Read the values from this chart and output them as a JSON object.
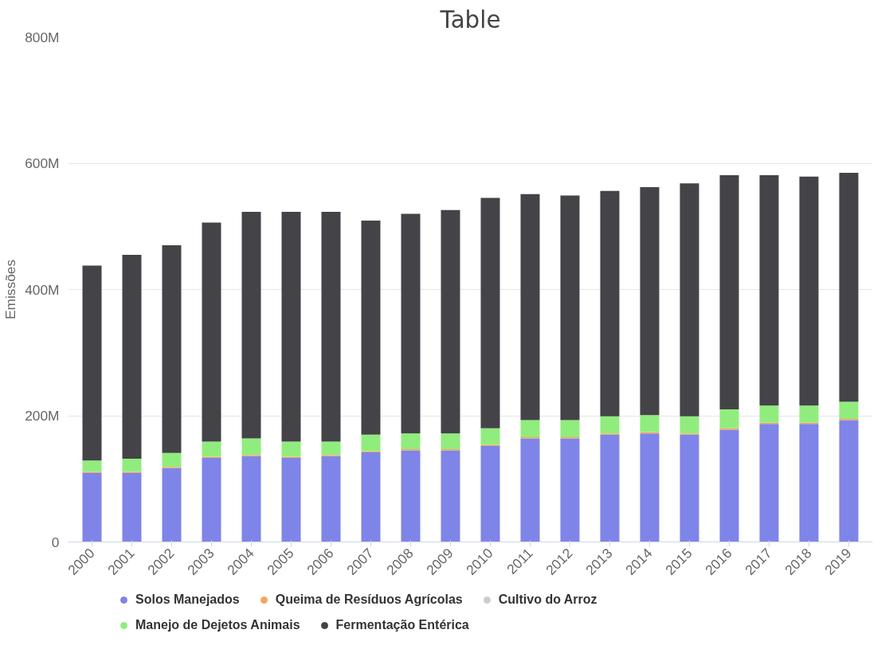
{
  "chart_data": {
    "type": "bar",
    "title": "Table",
    "ylabel": "Emissões",
    "stacked": true,
    "legend": "bottom",
    "grid": "y",
    "categories": [
      "2000",
      "2001",
      "2002",
      "2003",
      "2004",
      "2005",
      "2006",
      "2007",
      "2008",
      "2009",
      "2010",
      "2011",
      "2012",
      "2013",
      "2014",
      "2015",
      "2016",
      "2017",
      "2018",
      "2019"
    ],
    "ylim": [
      0,
      800
    ],
    "yticks": [
      0,
      {
        "value": 200,
        "label": "200M"
      },
      {
        "value": 400,
        "label": "400M"
      },
      {
        "value": 600,
        "label": "600M"
      },
      {
        "value": 800,
        "label": "800M"
      }
    ],
    "series": [
      {
        "name": "Solos Manejados",
        "color": "#7f84e8",
        "values": [
          109,
          109,
          117,
          133,
          136,
          133,
          136,
          142,
          145,
          145,
          152,
          164,
          164,
          170,
          172,
          170,
          178,
          187,
          187,
          193
        ]
      },
      {
        "name": "Queima de Resíduos Agrícolas",
        "color": "#f7a35c",
        "values": [
          2,
          2,
          2,
          2,
          2,
          2,
          2,
          2,
          2,
          2,
          2,
          2,
          2,
          2,
          2,
          2,
          2,
          2,
          2,
          2
        ]
      },
      {
        "name": "Cultivo do Arroz",
        "color": "#cccccc",
        "values": [
          null,
          null,
          null,
          null,
          null,
          null,
          null,
          null,
          null,
          null,
          null,
          null,
          null,
          null,
          null,
          null,
          null,
          null,
          null,
          null
        ]
      },
      {
        "name": "Manejo de Dejetos Animais",
        "color": "#90ed7d",
        "values": [
          18,
          21,
          22,
          24,
          26,
          24,
          21,
          26,
          25,
          25,
          26,
          27,
          27,
          27,
          27,
          27,
          30,
          27,
          27,
          27
        ]
      },
      {
        "name": "Fermentação Entérica",
        "color": "#434348",
        "values": [
          309,
          323,
          329,
          347,
          359,
          364,
          364,
          339,
          348,
          354,
          365,
          358,
          356,
          357,
          361,
          369,
          371,
          365,
          363,
          363
        ]
      }
    ]
  }
}
